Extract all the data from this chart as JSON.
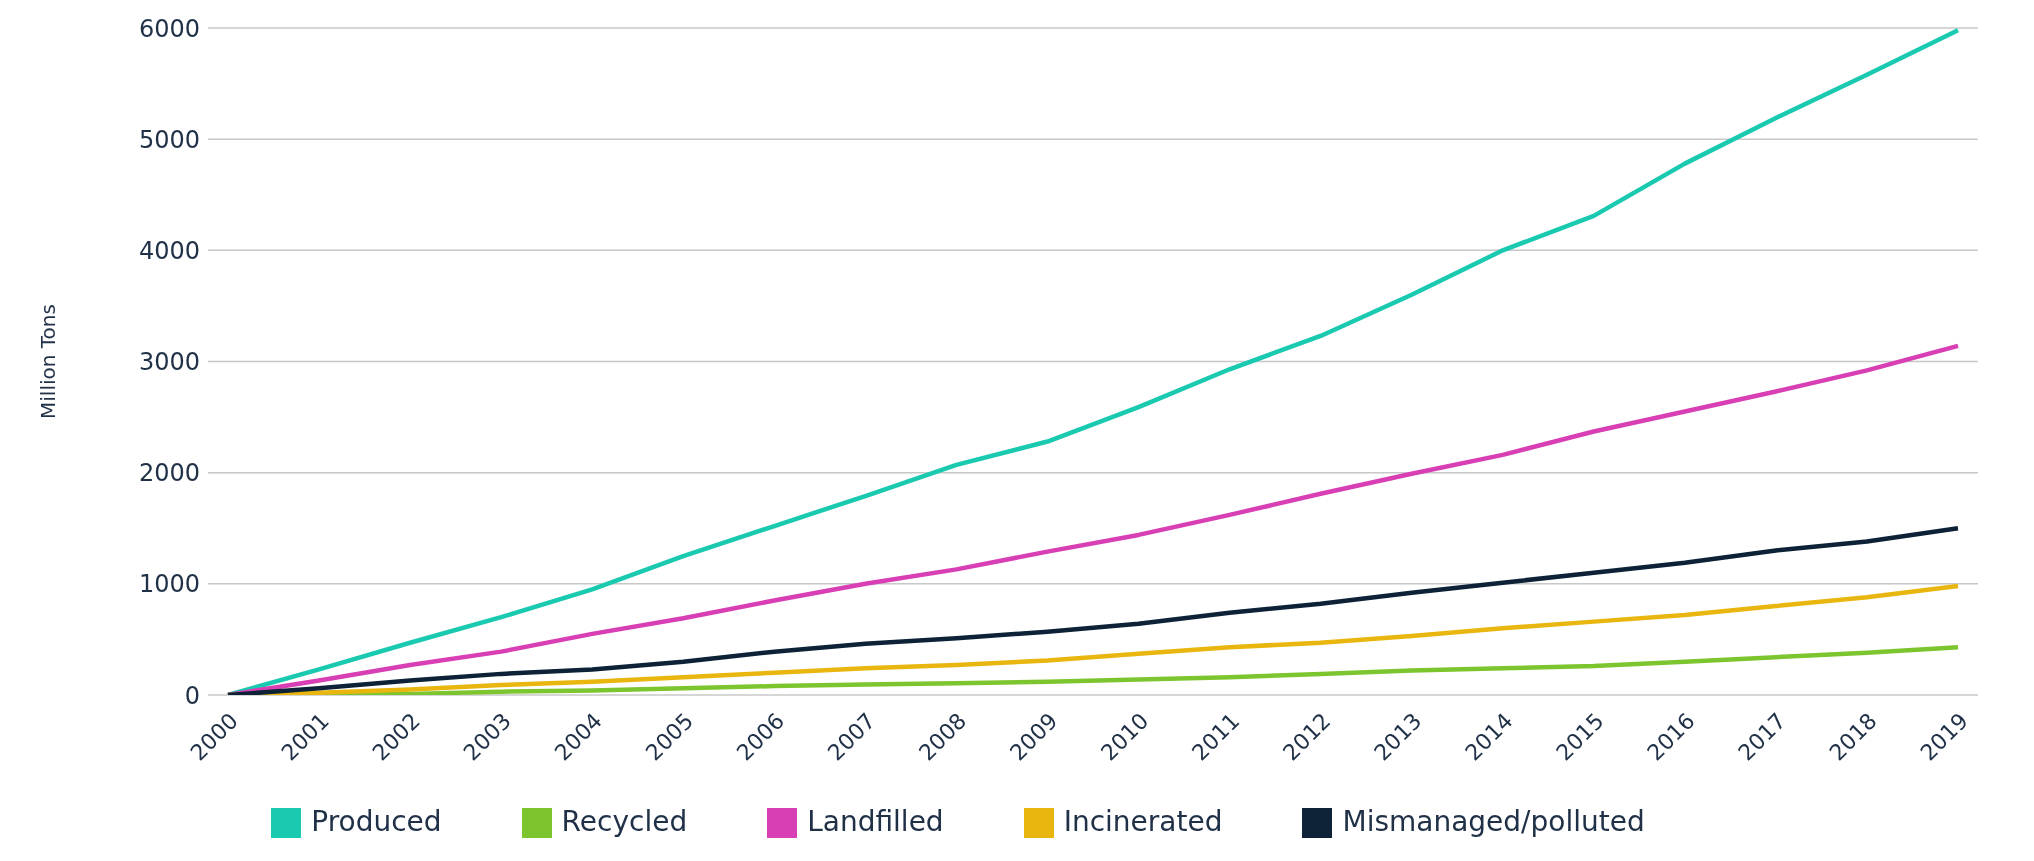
{
  "chart_data": {
    "type": "line",
    "ylabel": "Million Tons",
    "categories": [
      "2000",
      "2001",
      "2002",
      "2003",
      "2004",
      "2005",
      "2006",
      "2007",
      "2008",
      "2009",
      "2010",
      "2011",
      "2012",
      "2013",
      "2014",
      "2015",
      "2016",
      "2017",
      "2018",
      "2019"
    ],
    "series": [
      {
        "name": "Produced",
        "color": "#19c9b0",
        "values": [
          0,
          230,
          470,
          700,
          950,
          1250,
          1520,
          1790,
          2070,
          2280,
          2590,
          2930,
          3230,
          3600,
          4000,
          4310,
          4780,
          5190,
          5580,
          5980
        ]
      },
      {
        "name": "Recycled",
        "color": "#7dc52e",
        "values": [
          0,
          0,
          10,
          30,
          40,
          60,
          80,
          95,
          105,
          120,
          140,
          160,
          190,
          220,
          240,
          260,
          300,
          340,
          380,
          430
        ]
      },
      {
        "name": "Landfilled",
        "color": "#d93fb5",
        "values": [
          0,
          130,
          270,
          390,
          550,
          690,
          850,
          1000,
          1130,
          1290,
          1440,
          1620,
          1810,
          1990,
          2160,
          2370,
          2550,
          2730,
          2920,
          3140
        ]
      },
      {
        "name": "Incinerated",
        "color": "#e8b60f",
        "values": [
          0,
          20,
          50,
          90,
          120,
          160,
          200,
          240,
          270,
          310,
          370,
          430,
          470,
          530,
          600,
          660,
          720,
          800,
          880,
          980
        ]
      },
      {
        "name": "Mismanaged/polluted",
        "color": "#0d2236",
        "values": [
          0,
          60,
          130,
          190,
          230,
          300,
          390,
          460,
          510,
          570,
          640,
          740,
          820,
          920,
          1010,
          1100,
          1190,
          1300,
          1380,
          1500
        ]
      }
    ],
    "ylim": [
      0,
      6000
    ],
    "yticks": [
      0,
      1000,
      2000,
      3000,
      4000,
      5000,
      6000
    ],
    "grid": "y",
    "legend": "bottom",
    "marker": "none",
    "line_style": "solid"
  }
}
